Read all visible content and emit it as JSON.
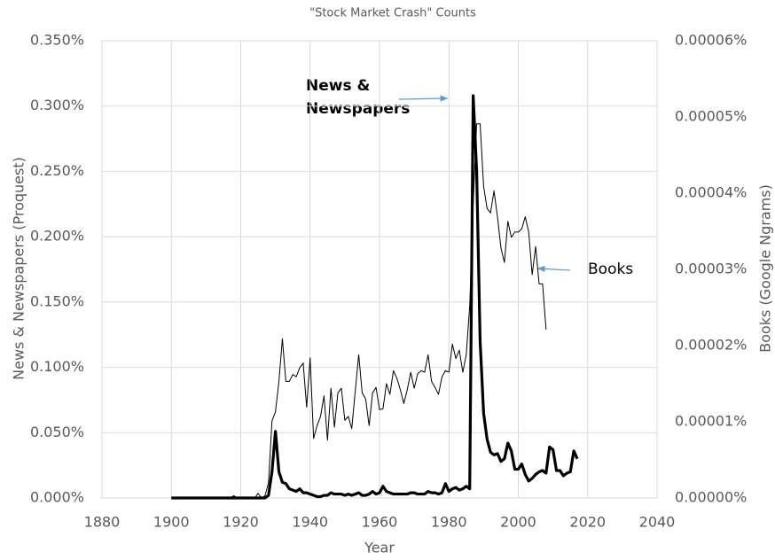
{
  "chart_data": {
    "type": "line",
    "title": "\"Stock Market Crash\" Counts",
    "xlabel": "Year",
    "ylabel": "News & Newspapers (Proquest)",
    "y2label": "Books (Google Ngrams)",
    "x": [
      1900,
      1901,
      1902,
      1903,
      1904,
      1905,
      1906,
      1907,
      1908,
      1909,
      1910,
      1911,
      1912,
      1913,
      1914,
      1915,
      1916,
      1917,
      1918,
      1919,
      1920,
      1921,
      1922,
      1923,
      1924,
      1925,
      1926,
      1927,
      1928,
      1929,
      1930,
      1931,
      1932,
      1933,
      1934,
      1935,
      1936,
      1937,
      1938,
      1939,
      1940,
      1941,
      1942,
      1943,
      1944,
      1945,
      1946,
      1947,
      1948,
      1949,
      1950,
      1951,
      1952,
      1953,
      1954,
      1955,
      1956,
      1957,
      1958,
      1959,
      1960,
      1961,
      1962,
      1963,
      1964,
      1965,
      1966,
      1967,
      1968,
      1969,
      1970,
      1971,
      1972,
      1973,
      1974,
      1975,
      1976,
      1977,
      1978,
      1979,
      1980,
      1981,
      1982,
      1983,
      1984,
      1985,
      1986,
      1987,
      1988,
      1989,
      1990,
      1991,
      1992,
      1993,
      1994,
      1995,
      1996,
      1997,
      1998,
      1999,
      2000,
      2001,
      2002,
      2003,
      2004,
      2005,
      2006,
      2007,
      2008,
      2009,
      2010,
      2011,
      2012,
      2013,
      2014,
      2015,
      2016,
      2017
    ],
    "series": [
      {
        "name": "News & Newspapers",
        "color": "#000000",
        "axis": "y",
        "values": [
          0,
          0,
          0,
          0,
          0,
          0,
          0,
          0,
          0,
          0,
          0,
          0,
          0,
          0,
          0,
          0,
          0,
          0,
          0,
          0,
          0,
          0,
          0,
          0,
          0,
          0,
          0,
          0,
          0.002,
          0.02,
          0.051,
          0.02,
          0.012,
          0.011,
          0.007,
          0.006,
          0.005,
          0.007,
          0.004,
          0.004,
          0.003,
          0.002,
          0.001,
          0.001,
          0.002,
          0.002,
          0.004,
          0.003,
          0.003,
          0.003,
          0.002,
          0.003,
          0.002,
          0.003,
          0.004,
          0.002,
          0.002,
          0.003,
          0.005,
          0.003,
          0.004,
          0.009,
          0.005,
          0.004,
          0.003,
          0.003,
          0.003,
          0.003,
          0.003,
          0.004,
          0.004,
          0.003,
          0.003,
          0.003,
          0.005,
          0.004,
          0.004,
          0.003,
          0.004,
          0.011,
          0.005,
          0.007,
          0.008,
          0.006,
          0.007,
          0.009,
          0.007,
          0.308,
          0.25,
          0.12,
          0.065,
          0.045,
          0.035,
          0.033,
          0.034,
          0.028,
          0.03,
          0.042,
          0.036,
          0.022,
          0.022,
          0.026,
          0.018,
          0.013,
          0.015,
          0.018,
          0.02,
          0.021,
          0.019,
          0.039,
          0.037,
          0.021,
          0.021,
          0.017,
          0.019,
          0.02,
          0.036,
          0.03
        ]
      },
      {
        "name": "Books",
        "color": "#000000",
        "axis": "y2",
        "values": [
          0,
          0,
          0,
          0,
          0,
          0,
          0,
          0,
          0,
          0,
          0,
          0,
          0,
          0,
          0,
          0,
          0,
          0,
          3e-07,
          0,
          0,
          0,
          0,
          0,
          0,
          6e-07,
          0,
          3e-07,
          2e-06,
          1.01e-05,
          1.13e-05,
          1.53e-05,
          2.09e-05,
          1.53e-05,
          1.53e-05,
          1.62e-05,
          1.59e-05,
          1.71e-05,
          1.77e-05,
          1.19e-05,
          1.84e-05,
          7.8e-06,
          9.5e-06,
          1.07e-05,
          1.34e-05,
          7.6e-06,
          1.44e-05,
          9.3e-06,
          1.38e-05,
          1.44e-05,
          1.02e-05,
          1.07e-05,
          9.1e-06,
          1.4e-05,
          1.88e-05,
          1.38e-05,
          1.3e-05,
          9.5e-06,
          1.38e-05,
          1.45e-05,
          1.16e-05,
          1.17e-05,
          1.5e-05,
          1.36e-05,
          1.67e-05,
          1.57e-05,
          1.42e-05,
          1.24e-05,
          1.42e-05,
          1.65e-05,
          1.44e-05,
          1.63e-05,
          1.67e-05,
          1.65e-05,
          1.88e-05,
          1.53e-05,
          1.45e-05,
          1.36e-05,
          1.59e-05,
          1.67e-05,
          1.65e-05,
          2.02e-05,
          1.83e-05,
          1.94e-05,
          1.65e-05,
          1.88e-05,
          2.52e-05,
          3.86e-05,
          4.91e-05,
          4.91e-05,
          4.09e-05,
          3.8e-05,
          3.74e-05,
          4.03e-05,
          3.69e-05,
          3.28e-05,
          3.09e-05,
          3.63e-05,
          3.42e-05,
          3.49e-05,
          3.49e-05,
          3.53e-05,
          3.69e-05,
          3.49e-05,
          2.93e-05,
          3.3e-05,
          2.81e-05,
          2.81e-05,
          2.21e-05,
          null,
          null,
          null,
          null,
          null,
          null,
          null,
          null,
          null
        ]
      }
    ],
    "xlim": [
      1880,
      2040
    ],
    "xticks": [
      1880,
      1900,
      1920,
      1940,
      1960,
      1980,
      2000,
      2020,
      2040
    ],
    "ylim": [
      0,
      0.35
    ],
    "yticks": [
      {
        "value": 0,
        "label": "0.000%"
      },
      {
        "value": 0.05,
        "label": "0.050%"
      },
      {
        "value": 0.1,
        "label": "0.100%"
      },
      {
        "value": 0.15,
        "label": "0.150%"
      },
      {
        "value": 0.2,
        "label": "0.200%"
      },
      {
        "value": 0.25,
        "label": "0.250%"
      },
      {
        "value": 0.3,
        "label": "0.300%"
      },
      {
        "value": 0.35,
        "label": "0.350%"
      }
    ],
    "y2lim": [
      0,
      6e-05
    ],
    "y2ticks": [
      {
        "value": 0,
        "label": "0.00000%"
      },
      {
        "value": 1e-05,
        "label": "0.00001%"
      },
      {
        "value": 2e-05,
        "label": "0.00002%"
      },
      {
        "value": 3e-05,
        "label": "0.00003%"
      },
      {
        "value": 4e-05,
        "label": "0.00004%"
      },
      {
        "value": 5e-05,
        "label": "0.00005%"
      },
      {
        "value": 6e-05,
        "label": "0.00006%"
      }
    ],
    "grid": true,
    "annotations": [
      {
        "lines": [
          "News &",
          "Newspapers"
        ]
      },
      {
        "lines": [
          "Books"
        ]
      }
    ]
  }
}
